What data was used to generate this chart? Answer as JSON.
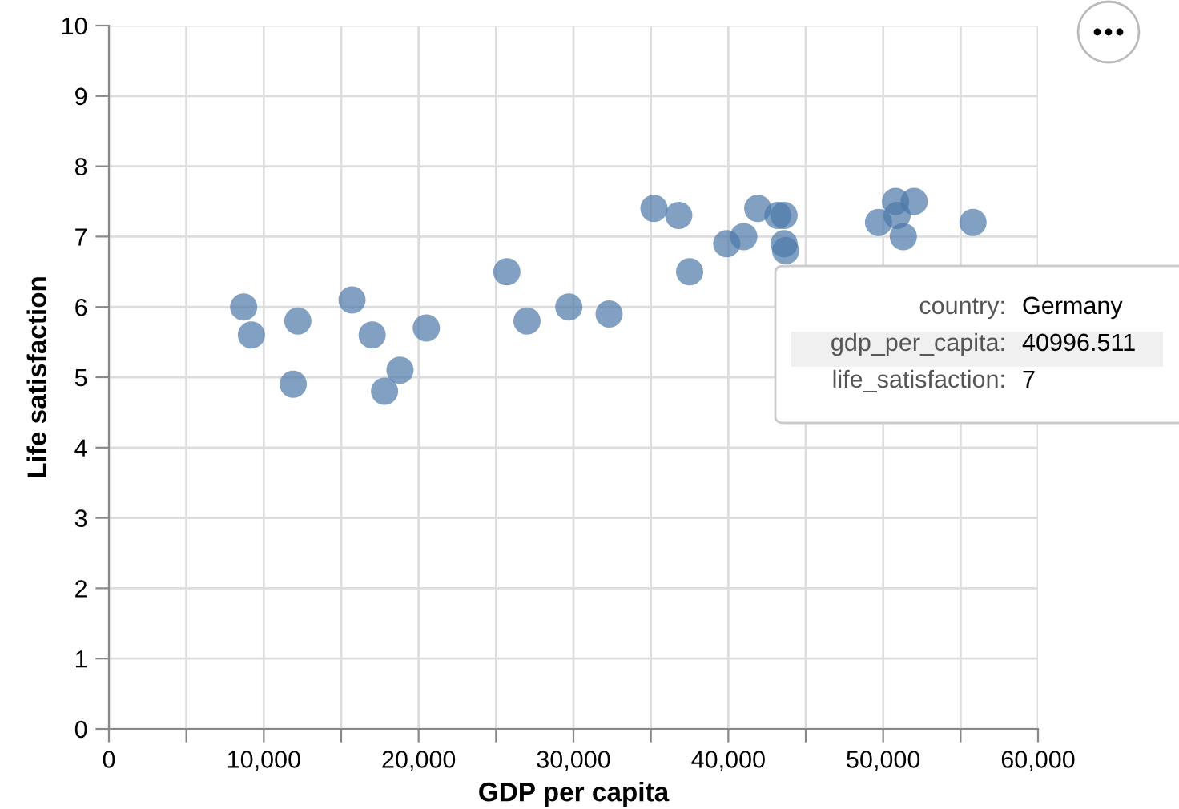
{
  "chart_data": {
    "type": "scatter",
    "xlabel": "GDP per capita",
    "ylabel": "Life satisfaction",
    "x": [
      8700,
      9200,
      12200,
      11900,
      15700,
      17000,
      17800,
      18800,
      20500,
      25700,
      27000,
      29700,
      32300,
      35200,
      36800,
      37500,
      39900,
      40996.511,
      41900,
      43200,
      43600,
      43600,
      43700,
      49700,
      50800,
      50900,
      51300,
      52000,
      55800
    ],
    "series": [
      {
        "color": "#4c78a8",
        "values": [
          6.0,
          5.6,
          5.8,
          4.9,
          6.1,
          5.6,
          4.8,
          5.1,
          5.7,
          6.5,
          5.8,
          6.0,
          5.9,
          7.4,
          7.3,
          6.5,
          6.9,
          7.0,
          7.4,
          7.3,
          7.3,
          6.9,
          6.8,
          7.2,
          7.5,
          7.3,
          7.0,
          7.5,
          7.2
        ]
      }
    ],
    "xlim": [
      0,
      60000
    ],
    "xticks": [
      0,
      {
        "value": 5000,
        "label": null
      },
      {
        "value": 10000,
        "label": "10,000"
      },
      {
        "value": 15000,
        "label": null
      },
      {
        "value": 20000,
        "label": "20,000"
      },
      {
        "value": 25000,
        "label": null
      },
      {
        "value": 30000,
        "label": "30,000"
      },
      {
        "value": 35000,
        "label": null
      },
      {
        "value": 40000,
        "label": "40,000"
      },
      {
        "value": 45000,
        "label": null
      },
      {
        "value": 50000,
        "label": "50,000"
      },
      {
        "value": 55000,
        "label": null
      },
      {
        "value": 60000,
        "label": "60,000"
      }
    ],
    "ylim": [
      0,
      10
    ],
    "yticks": [
      0,
      1,
      2,
      3,
      4,
      5,
      6,
      7,
      8,
      9,
      10
    ],
    "grid": true,
    "marker": "circle",
    "legend": false,
    "annotations": [
      "country:",
      "Germany",
      "gdp_per_capita:",
      "40996.511",
      "life_satisfaction:",
      "7"
    ]
  }
}
